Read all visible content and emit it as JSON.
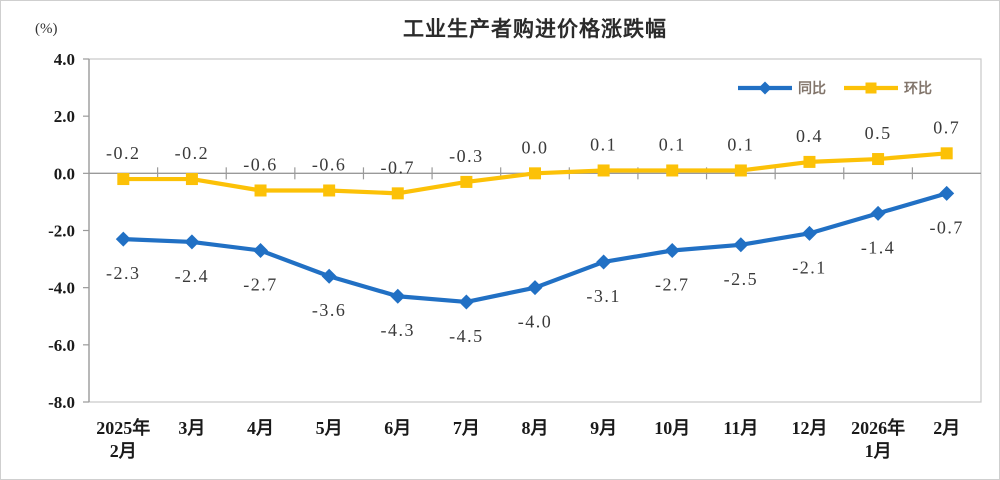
{
  "chart_data": {
    "type": "line",
    "title": "工业生产者购进价格涨跌幅",
    "unit_label": "(%)",
    "categories": [
      [
        "2025年",
        "2月"
      ],
      [
        "3月"
      ],
      [
        "4月"
      ],
      [
        "5月"
      ],
      [
        "6月"
      ],
      [
        "7月"
      ],
      [
        "8月"
      ],
      [
        "9月"
      ],
      [
        "10月"
      ],
      [
        "11月"
      ],
      [
        "12月"
      ],
      [
        "2026年",
        "1月"
      ],
      [
        "2月"
      ]
    ],
    "series": [
      {
        "name": "同比",
        "marker": "diamond",
        "color": "#2170C4",
        "values": [
          -2.3,
          -2.4,
          -2.7,
          -3.6,
          -4.3,
          -4.5,
          -4.0,
          -3.1,
          -2.7,
          -2.5,
          -2.1,
          -1.4,
          -0.7
        ],
        "labels": [
          "-2.3",
          "-2.4",
          "-2.7",
          "-3.6",
          "-4.3",
          "-4.5",
          "-4.0",
          "-3.1",
          "-2.7",
          "-2.5",
          "-2.1",
          "-1.4",
          "-0.7"
        ],
        "label_position": "below"
      },
      {
        "name": "环比",
        "marker": "square",
        "color": "#FCC107",
        "values": [
          -0.2,
          -0.2,
          -0.6,
          -0.6,
          -0.7,
          -0.3,
          0.0,
          0.1,
          0.1,
          0.1,
          0.4,
          0.5,
          0.7
        ],
        "labels": [
          "-0.2",
          "-0.2",
          "-0.6",
          "-0.6",
          "-0.7",
          "-0.3",
          "0.0",
          "0.1",
          "0.1",
          "0.1",
          "0.4",
          "0.5",
          "0.7"
        ],
        "label_position": "above"
      }
    ],
    "ylim": [
      -8.0,
      4.0
    ],
    "yticks": [
      {
        "value": 4.0,
        "label": "4.0"
      },
      {
        "value": 2.0,
        "label": "2.0"
      },
      {
        "value": 0.0,
        "label": "0.0"
      },
      {
        "value": -2.0,
        "label": "-2.0"
      },
      {
        "value": -4.0,
        "label": "-4.0"
      },
      {
        "value": -6.0,
        "label": "-6.0"
      },
      {
        "value": -8.0,
        "label": "-8.0"
      }
    ],
    "grid": false,
    "legend_position": "top-right",
    "colors": {
      "axis": "#9a9a9a",
      "plot_border": "#c9c9c9",
      "tick": "#9a9a9a",
      "data_label": "#3a3a3a",
      "axis_label": "#1a1a1a",
      "legend_text": "#82756b"
    }
  }
}
